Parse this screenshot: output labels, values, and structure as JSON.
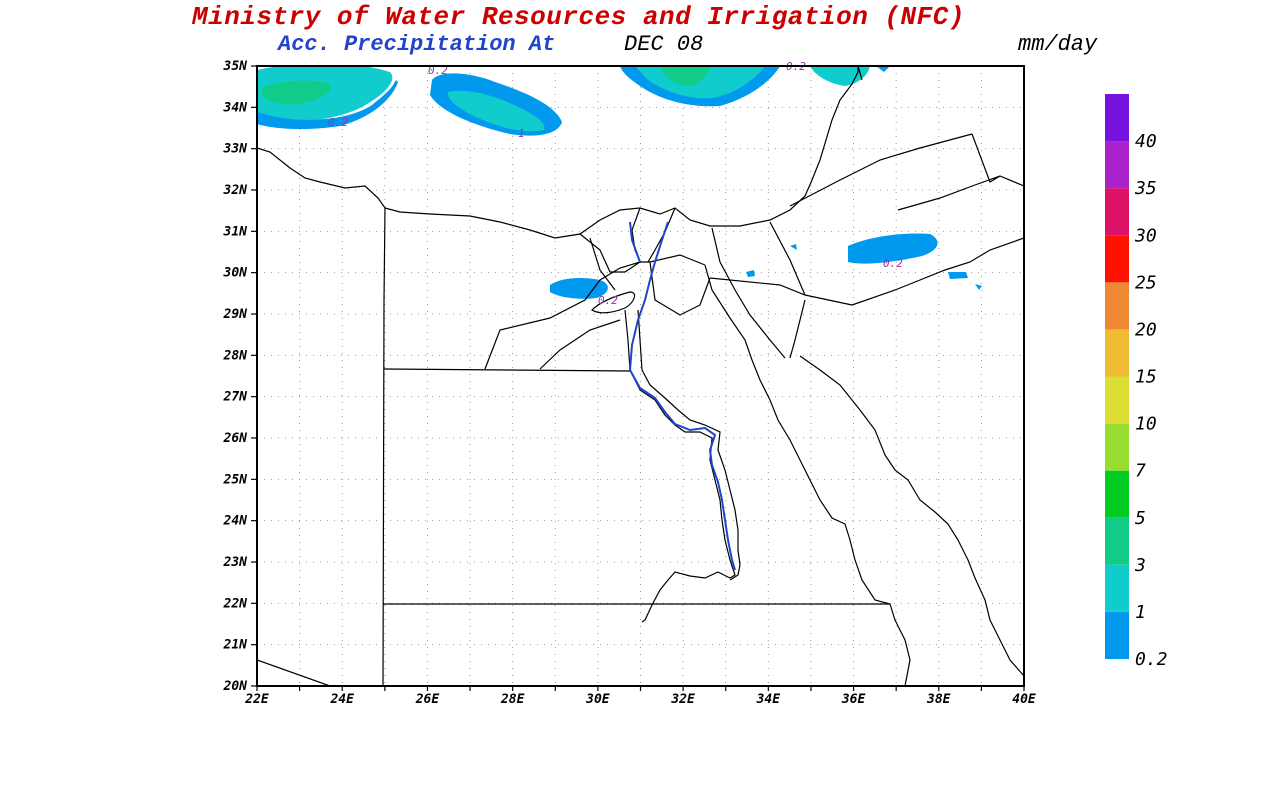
{
  "header": {
    "title": "Ministry of Water Resources and Irrigation (NFC)",
    "subtitle": "Acc. Precipitation  At",
    "date": "DEC 08",
    "units": "mm/day"
  },
  "map": {
    "lat_labels": [
      "35N",
      "34N",
      "33N",
      "32N",
      "31N",
      "30N",
      "29N",
      "28N",
      "27N",
      "26N",
      "25N",
      "24N",
      "23N",
      "22N",
      "21N",
      "20N"
    ],
    "lon_labels": [
      "22E",
      "24E",
      "26E",
      "28E",
      "30E",
      "32E",
      "34E",
      "36E",
      "38E",
      "40E"
    ],
    "contour_labels": [
      "0.2",
      "0.2",
      "1",
      "0.2",
      "0.2",
      "0.2"
    ]
  },
  "colorbar": {
    "levels": [
      "0.2",
      "1",
      "3",
      "5",
      "7",
      "10",
      "15",
      "20",
      "25",
      "30",
      "35",
      "40"
    ],
    "colors": [
      "#0099ee",
      "#11cccc",
      "#11cc88",
      "#00cc22",
      "#99dd33",
      "#dddd33",
      "#eebb33",
      "#ee8833",
      "#ff1100",
      "#dd1166",
      "#aa22cc",
      "#7711dd"
    ]
  }
}
